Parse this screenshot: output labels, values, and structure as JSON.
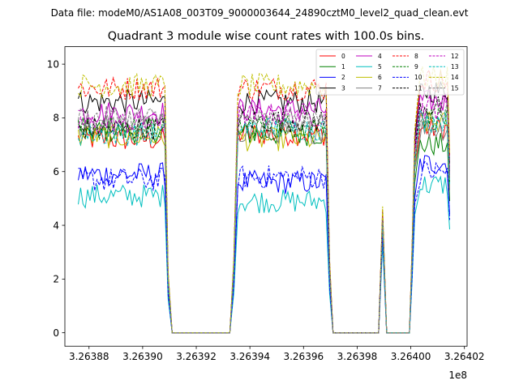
{
  "figure": {
    "suptitle": "Data file: modeM0/AS1A08_003T09_9000003644_24890cztM0_level2_quad_clean.evt"
  },
  "chart_data": {
    "type": "line",
    "title": "Quadrant 3 module wise count rates with 100.0s bins.",
    "xlabel": "",
    "ylabel": "",
    "x_offset_label": "1e8",
    "xlim": [
      3.263871,
      3.264021
    ],
    "ylim": [
      -0.5,
      10.65
    ],
    "x_ticks": [
      3.26388,
      3.2639,
      3.26392,
      3.26394,
      3.26396,
      3.26398,
      3.264,
      3.26402
    ],
    "x_tick_labels": [
      "3.26388",
      "3.26390",
      "3.26392",
      "3.26394",
      "3.26396",
      "3.26398",
      "3.26400",
      "3.26402"
    ],
    "y_ticks": [
      0,
      2,
      4,
      6,
      8,
      10
    ],
    "y_tick_labels": [
      "0",
      "2",
      "4",
      "6",
      "8",
      "10"
    ],
    "grid": false,
    "legend_placement": "top-right",
    "segments": [
      {
        "x_start": 3.263876,
        "x_end": 3.2639083,
        "n": 38
      },
      {
        "x_start": 3.2639355,
        "x_end": 3.2639684,
        "n": 38
      },
      {
        "x_start": 3.2640035,
        "x_end": 3.2640145,
        "n": 14
      }
    ],
    "gap_points": {
      "x": [
        3.2639083,
        3.2639095,
        3.263911,
        3.2639325,
        3.263934,
        3.2639355,
        3.2639684,
        3.2639697,
        3.263971,
        3.263984,
        3.263988,
        3.2639895,
        3.263991,
        3.263992,
        3.2639935,
        3.2639995,
        3.2640005,
        3.2640015,
        3.2640035
      ],
      "y": [
        "last",
        "fall",
        0,
        0,
        "rise",
        "first",
        "last",
        "fall",
        0,
        0,
        0,
        "spike",
        0,
        0,
        0,
        0,
        "rise",
        "rise2",
        "first"
      ]
    },
    "series": [
      {
        "name": "0",
        "color": "#ff0000",
        "dash": "solid",
        "seg_levels": [
          7.2,
          7.4,
          7.6
        ],
        "spike": 4.4
      },
      {
        "name": "1",
        "color": "#008000",
        "dash": "solid",
        "seg_levels": [
          7.5,
          7.4,
          7.0
        ],
        "spike": 4.2
      },
      {
        "name": "2",
        "color": "#0000ff",
        "dash": "solid",
        "seg_levels": [
          5.9,
          5.6,
          6.3
        ],
        "spike": 3.5
      },
      {
        "name": "3",
        "color": "#000000",
        "dash": "solid",
        "seg_levels": [
          8.6,
          8.6,
          9.0
        ],
        "spike": 4.5
      },
      {
        "name": "4",
        "color": "#bf00bf",
        "dash": "solid",
        "seg_levels": [
          8.2,
          8.3,
          8.6
        ],
        "spike": 4.3
      },
      {
        "name": "5",
        "color": "#00bfbf",
        "dash": "solid",
        "seg_levels": [
          5.1,
          4.9,
          5.5
        ],
        "spike": 3.3
      },
      {
        "name": "6",
        "color": "#bfbf00",
        "dash": "solid",
        "seg_levels": [
          7.3,
          7.2,
          7.8
        ],
        "spike": 4.0
      },
      {
        "name": "7",
        "color": "#808080",
        "dash": "solid",
        "seg_levels": [
          7.7,
          7.5,
          7.6
        ],
        "spike": 4.1
      },
      {
        "name": "8",
        "color": "#ff0000",
        "dash": "dashed",
        "seg_levels": [
          9.1,
          9.1,
          9.4
        ],
        "spike": 4.6
      },
      {
        "name": "9",
        "color": "#008000",
        "dash": "dashed",
        "seg_levels": [
          7.6,
          7.7,
          8.0
        ],
        "spike": 4.2
      },
      {
        "name": "10",
        "color": "#0000ff",
        "dash": "dashed",
        "seg_levels": [
          5.7,
          5.8,
          6.0
        ],
        "spike": 3.6
      },
      {
        "name": "11",
        "color": "#000000",
        "dash": "dashed",
        "seg_levels": [
          7.6,
          7.9,
          8.4
        ],
        "spike": 4.2
      },
      {
        "name": "12",
        "color": "#bf00bf",
        "dash": "dashed",
        "seg_levels": [
          7.8,
          8.1,
          8.4
        ],
        "spike": 4.3
      },
      {
        "name": "13",
        "color": "#00bfbf",
        "dash": "dashed",
        "seg_levels": [
          7.4,
          7.6,
          7.9
        ],
        "spike": 4.1
      },
      {
        "name": "14",
        "color": "#bfbf00",
        "dash": "dashed",
        "seg_levels": [
          9.2,
          9.2,
          9.5
        ],
        "spike": 4.7
      },
      {
        "name": "15",
        "color": "#808080",
        "dash": "dashed",
        "seg_levels": [
          8.0,
          7.9,
          8.2
        ],
        "spike": 4.2
      }
    ]
  }
}
